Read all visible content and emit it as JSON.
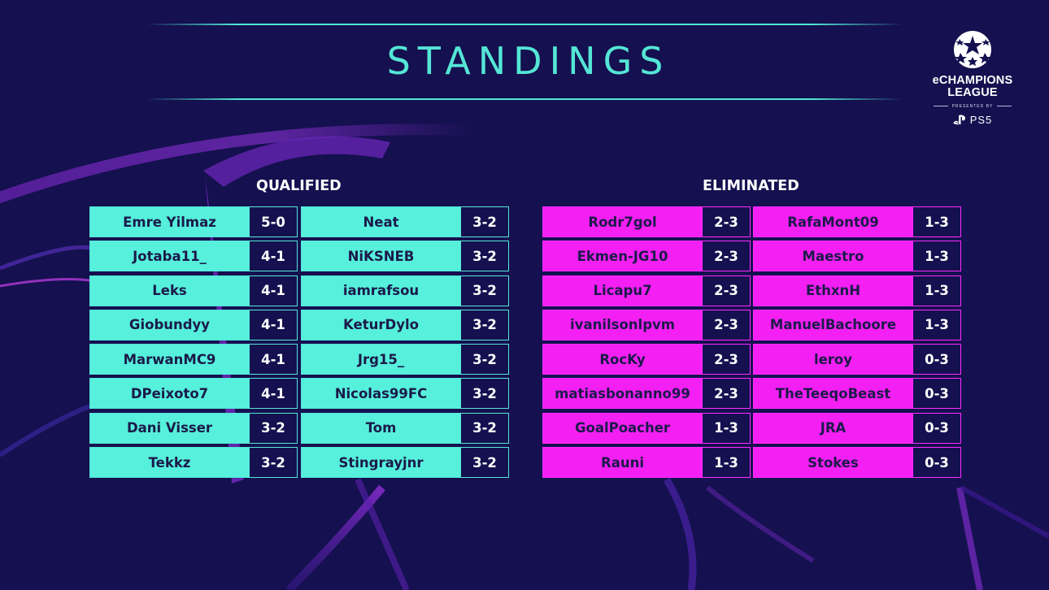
{
  "title": "STANDINGS",
  "logo": {
    "line1": "eCHAMPIONS",
    "line2": "LEAGUE",
    "presented_by": "PRESENTED BY",
    "platform": "PS5"
  },
  "sections": {
    "qualified_label": "QUALIFIED",
    "eliminated_label": "ELIMINATED"
  },
  "colors": {
    "background": "#15104f",
    "qualified": "#56f0dc",
    "eliminated": "#f41ff2",
    "accent": "#54e6d6"
  },
  "qualified_columns": [
    [
      {
        "name": "Emre Yilmaz",
        "score": "5-0"
      },
      {
        "name": "Jotaba11_",
        "score": "4-1"
      },
      {
        "name": "Leks",
        "score": "4-1"
      },
      {
        "name": "Giobundyy",
        "score": "4-1"
      },
      {
        "name": "MarwanMC9",
        "score": "4-1"
      },
      {
        "name": "DPeixoto7",
        "score": "4-1"
      },
      {
        "name": "Dani Visser",
        "score": "3-2"
      },
      {
        "name": "Tekkz",
        "score": "3-2"
      }
    ],
    [
      {
        "name": "Neat",
        "score": "3-2"
      },
      {
        "name": "NiKSNEB",
        "score": "3-2"
      },
      {
        "name": "iamrafsou",
        "score": "3-2"
      },
      {
        "name": "KeturDylo",
        "score": "3-2"
      },
      {
        "name": "Jrg15_",
        "score": "3-2"
      },
      {
        "name": "Nicolas99FC",
        "score": "3-2"
      },
      {
        "name": "Tom",
        "score": "3-2"
      },
      {
        "name": "Stingrayjnr",
        "score": "3-2"
      }
    ]
  ],
  "eliminated_columns": [
    [
      {
        "name": "Rodr7gol",
        "score": "2-3"
      },
      {
        "name": "Ekmen-JG10",
        "score": "2-3"
      },
      {
        "name": "Licapu7",
        "score": "2-3"
      },
      {
        "name": "ivanilsonlpvm",
        "score": "2-3"
      },
      {
        "name": "RocKy",
        "score": "2-3"
      },
      {
        "name": "matiasbonanno99",
        "score": "2-3"
      },
      {
        "name": "GoalPoacher",
        "score": "1-3"
      },
      {
        "name": "Rauni",
        "score": "1-3"
      }
    ],
    [
      {
        "name": "RafaMont09",
        "score": "1-3"
      },
      {
        "name": "Maestro",
        "score": "1-3"
      },
      {
        "name": "EthxnH",
        "score": "1-3"
      },
      {
        "name": "ManuelBachoore",
        "score": "1-3"
      },
      {
        "name": "leroy",
        "score": "0-3"
      },
      {
        "name": "TheTeeqoBeast",
        "score": "0-3"
      },
      {
        "name": "JRA",
        "score": "0-3"
      },
      {
        "name": "Stokes",
        "score": "0-3"
      }
    ]
  ]
}
